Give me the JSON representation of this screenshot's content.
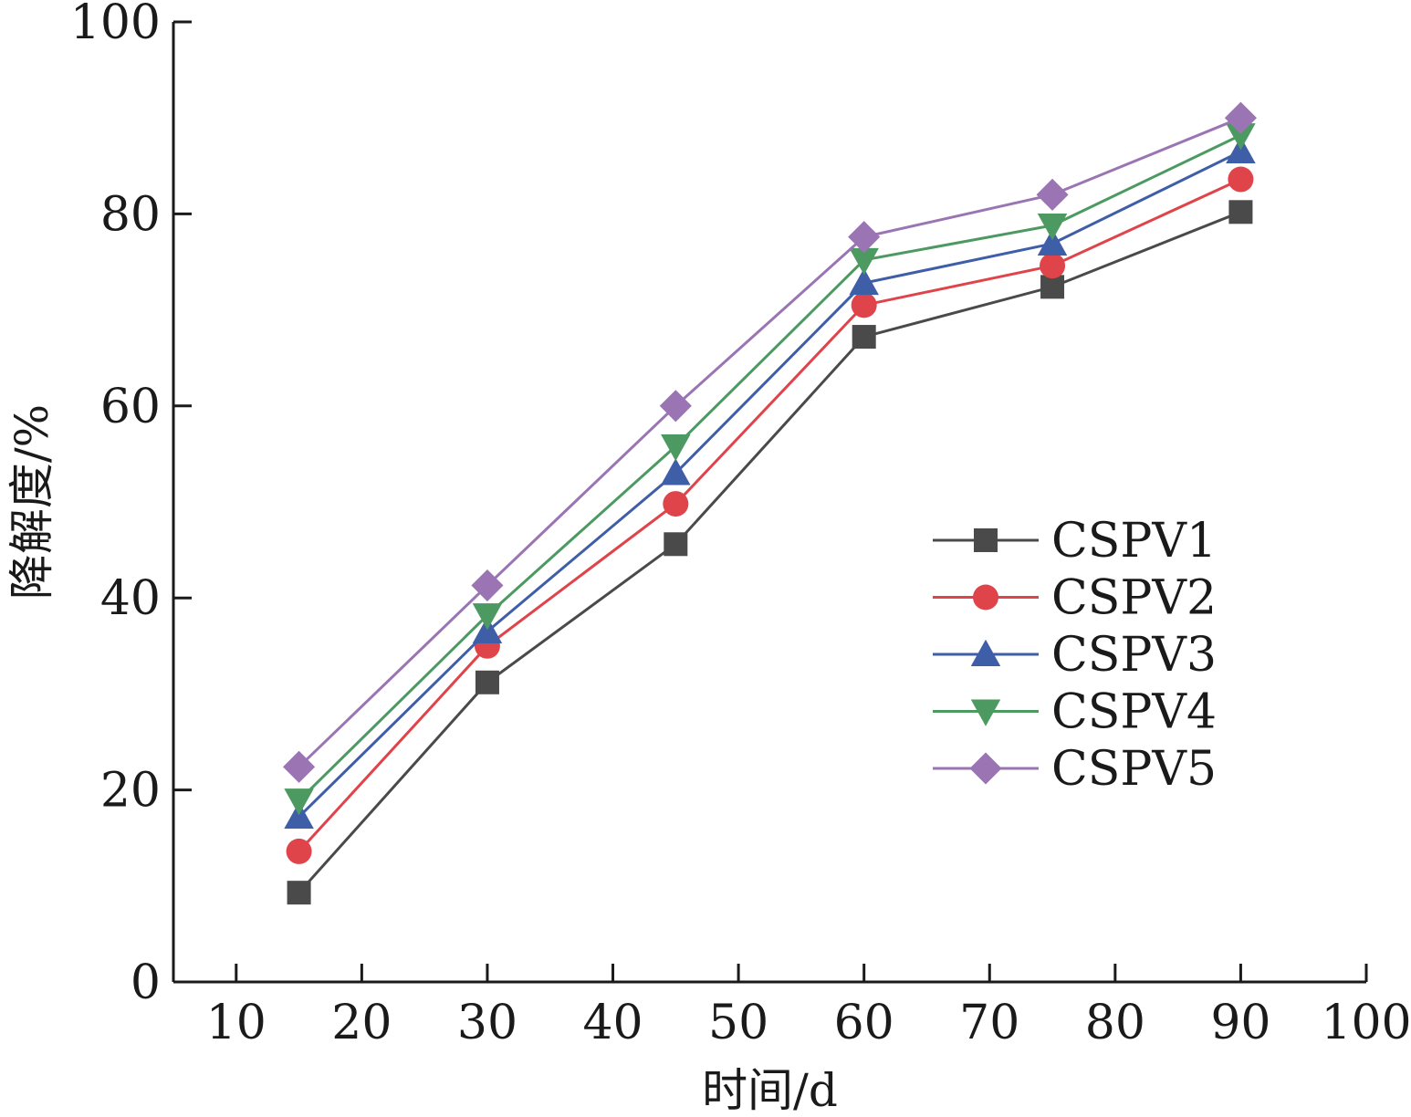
{
  "chart_data": {
    "type": "line",
    "xlabel": "时间/d",
    "ylabel": "降解度/%",
    "xlim": [
      5,
      100
    ],
    "ylim": [
      0,
      100
    ],
    "x_ticks": [
      10,
      20,
      30,
      40,
      50,
      60,
      70,
      80,
      90,
      100
    ],
    "y_ticks": [
      0,
      20,
      40,
      60,
      80,
      100
    ],
    "x": [
      15,
      30,
      45,
      60,
      75,
      90
    ],
    "grid": false,
    "legend_position": "center-right",
    "series": [
      {
        "name": "CSPV1",
        "color": "#4a4a4a",
        "marker": "square",
        "values": [
          9.3,
          31.2,
          45.6,
          67.2,
          72.4,
          80.2
        ]
      },
      {
        "name": "CSPV2",
        "color": "#e0444b",
        "marker": "circle",
        "values": [
          13.6,
          35.0,
          49.8,
          70.5,
          74.6,
          83.6
        ]
      },
      {
        "name": "CSPV3",
        "color": "#3f5ea8",
        "marker": "triangle-up",
        "values": [
          17.2,
          36.5,
          53.0,
          72.8,
          76.9,
          86.5
        ]
      },
      {
        "name": "CSPV4",
        "color": "#4c9a62",
        "marker": "triangle-down",
        "values": [
          18.9,
          38.2,
          55.8,
          75.2,
          78.8,
          88.2
        ]
      },
      {
        "name": "CSPV5",
        "color": "#9a74b3",
        "marker": "diamond",
        "values": [
          22.4,
          41.3,
          60.0,
          77.6,
          82.0,
          90.0
        ]
      }
    ]
  }
}
